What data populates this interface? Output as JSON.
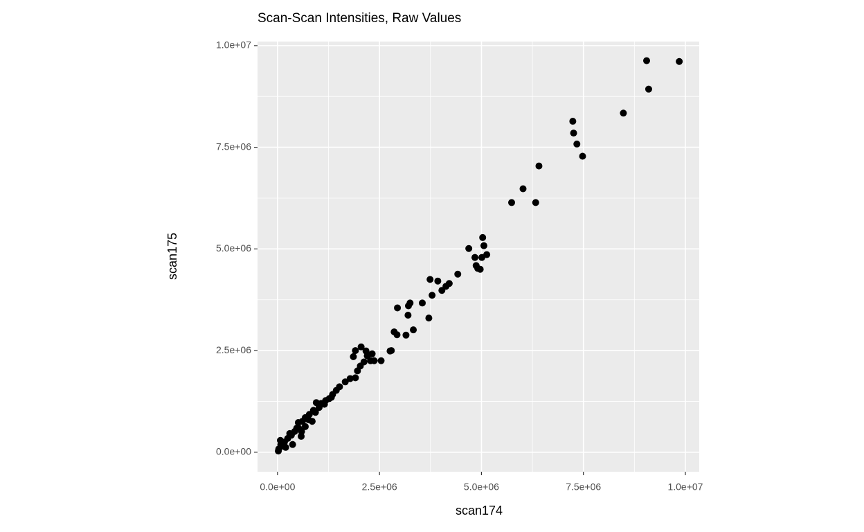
{
  "chart_data": {
    "type": "scatter",
    "title": "Scan-Scan Intensities, Raw Values",
    "x_label": "scan174",
    "y_label": "scan175",
    "color": "#000000",
    "grid": true,
    "xlim": [
      -490000,
      10340000
    ],
    "ylim": [
      -480000,
      10100000
    ],
    "xticks": [
      {
        "value": 0,
        "label": "0.0e+00"
      },
      {
        "value": 2500000,
        "label": "2.5e+06"
      },
      {
        "value": 5000000,
        "label": "5.0e+06"
      },
      {
        "value": 7500000,
        "label": "7.5e+06"
      },
      {
        "value": 10000000,
        "label": "1.0e+07"
      }
    ],
    "yticks": [
      {
        "value": 0,
        "label": "0.0e+00"
      },
      {
        "value": 2500000,
        "label": "2.5e+06"
      },
      {
        "value": 5000000,
        "label": "5.0e+06"
      },
      {
        "value": 7500000,
        "label": "7.5e+06"
      },
      {
        "value": 10000000,
        "label": "1.0e+07"
      }
    ],
    "x": [
      9050000,
      9850000,
      9100000,
      8480000,
      7240000,
      7260000,
      7340000,
      7480000,
      6410000,
      6020000,
      5740000,
      6330000,
      5030000,
      4690000,
      5060000,
      5130000,
      4840000,
      5010000,
      4870000,
      4910000,
      4970000,
      4420000,
      3740000,
      3930000,
      4210000,
      4130000,
      4030000,
      3550000,
      3250000,
      3210000,
      3790000,
      2940000,
      3200000,
      3710000,
      3330000,
      2860000,
      2930000,
      3150000,
      2760000,
      2790000,
      2540000,
      2050000,
      1910000,
      2170000,
      2320000,
      1860000,
      2200000,
      2370000,
      2280000,
      2120000,
      2030000,
      1960000,
      1910000,
      1780000,
      1660000,
      1520000,
      1440000,
      1350000,
      1270000,
      1180000,
      1070000,
      950000,
      1020000,
      880000,
      780000,
      680000,
      610000,
      510000,
      520000,
      580000,
      420000,
      340000,
      370000,
      250000,
      170000,
      80000,
      30000,
      20000,
      70000,
      140000,
      200000,
      300000,
      470000,
      760000,
      930000,
      1150000,
      1320000,
      850000,
      680000,
      590000
    ],
    "y": [
      9630000,
      9610000,
      8930000,
      8340000,
      8140000,
      7850000,
      7580000,
      7280000,
      7040000,
      6480000,
      6140000,
      6140000,
      5280000,
      5010000,
      5080000,
      4860000,
      4790000,
      4790000,
      4590000,
      4520000,
      4500000,
      4380000,
      4250000,
      4210000,
      4150000,
      4080000,
      3980000,
      3670000,
      3670000,
      3600000,
      3860000,
      3550000,
      3370000,
      3300000,
      3010000,
      2960000,
      2890000,
      2880000,
      2490000,
      2500000,
      2250000,
      2590000,
      2500000,
      2490000,
      2420000,
      2350000,
      2370000,
      2250000,
      2250000,
      2220000,
      2120000,
      2000000,
      1830000,
      1810000,
      1730000,
      1610000,
      1520000,
      1420000,
      1320000,
      1270000,
      1200000,
      1220000,
      1100000,
      1030000,
      930000,
      850000,
      760000,
      730000,
      590000,
      390000,
      510000,
      420000,
      190000,
      340000,
      250000,
      190000,
      80000,
      30000,
      290000,
      150000,
      120000,
      460000,
      590000,
      800000,
      980000,
      1180000,
      1350000,
      760000,
      630000,
      510000
    ]
  }
}
